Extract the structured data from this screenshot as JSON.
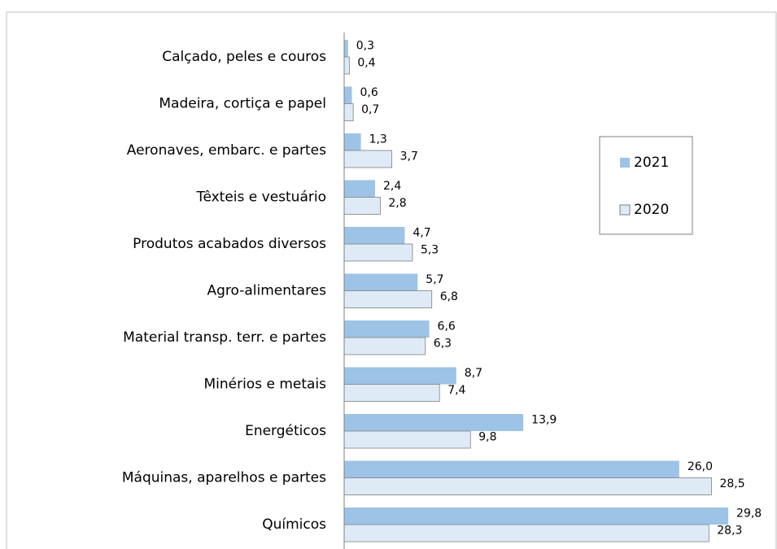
{
  "chart_data": {
    "type": "bar",
    "orientation": "horizontal",
    "categories": [
      "Calçado, peles e couros",
      "Madeira, cortiça e papel",
      "Aeronaves, embarc. e partes",
      "Têxteis e vestuário",
      "Produtos acabados diversos",
      "Agro-alimentares",
      "Material transp. terr. e partes",
      "Minérios e metais",
      "Energéticos",
      "Máquinas, aparelhos e partes",
      "Químicos"
    ],
    "series": [
      {
        "name": "2021",
        "color": "#9dc3e6",
        "values": [
          0.3,
          0.6,
          1.3,
          2.4,
          4.7,
          5.7,
          6.6,
          8.7,
          13.9,
          26.0,
          29.8
        ],
        "value_labels": [
          "0,3",
          "0,6",
          "1,3",
          "2,4",
          "4,7",
          "5,7",
          "6,6",
          "8,7",
          "13,9",
          "26,0",
          "29,8"
        ]
      },
      {
        "name": "2020",
        "color": "#deebf7",
        "values": [
          0.4,
          0.7,
          3.7,
          2.8,
          5.3,
          6.8,
          6.3,
          7.4,
          9.8,
          28.5,
          28.3
        ],
        "value_labels": [
          "0,4",
          "0,7",
          "3,7",
          "2,8",
          "5,3",
          "6,8",
          "6,3",
          "7,4",
          "9,8",
          "28,5",
          "28,3"
        ]
      }
    ],
    "legend": "right"
  }
}
